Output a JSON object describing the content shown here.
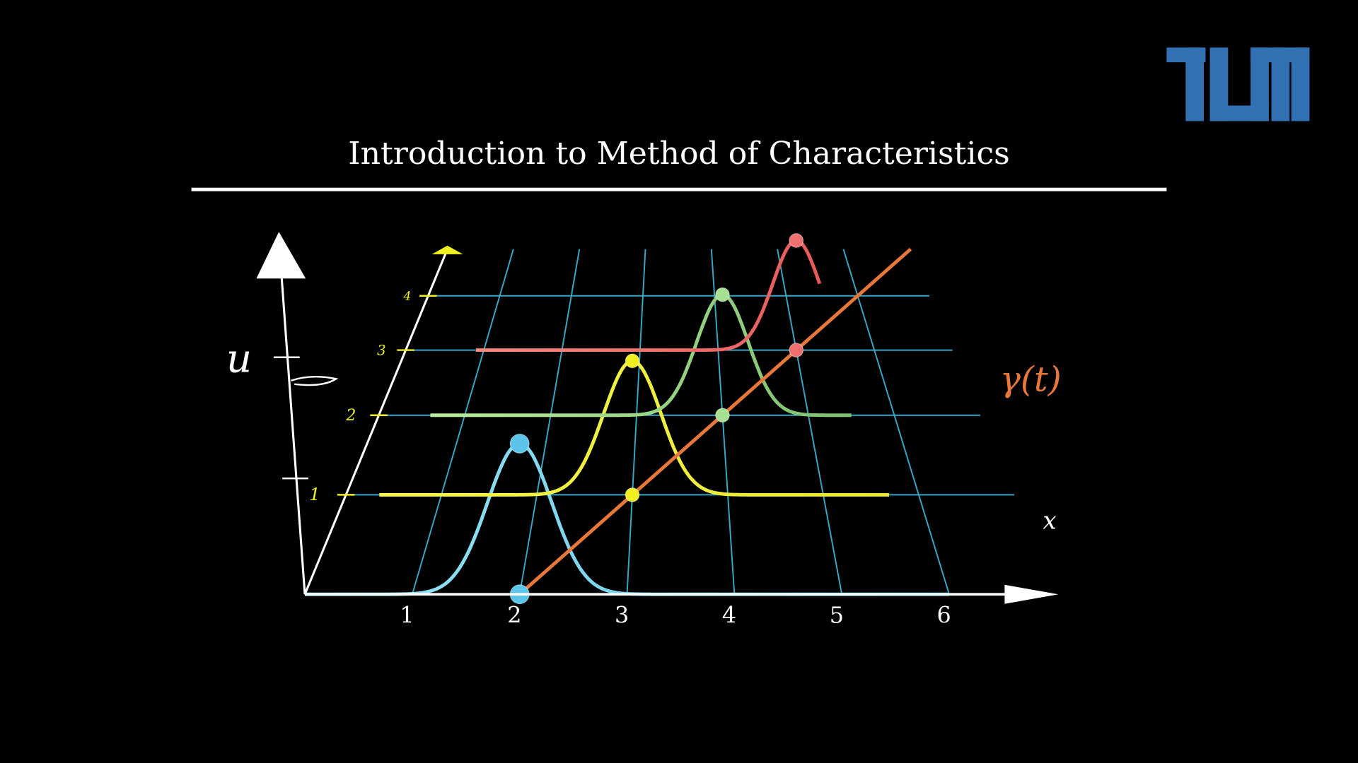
{
  "title": "Introduction to Method of Characteristics",
  "u_axis": {
    "label": "u"
  },
  "x_axis": {
    "label": "x",
    "ticks": [
      1,
      2,
      3,
      4,
      5,
      6
    ]
  },
  "t_axis": {
    "ticks": [
      1,
      2,
      3,
      4
    ]
  },
  "curve_label": "γ(t)"
}
